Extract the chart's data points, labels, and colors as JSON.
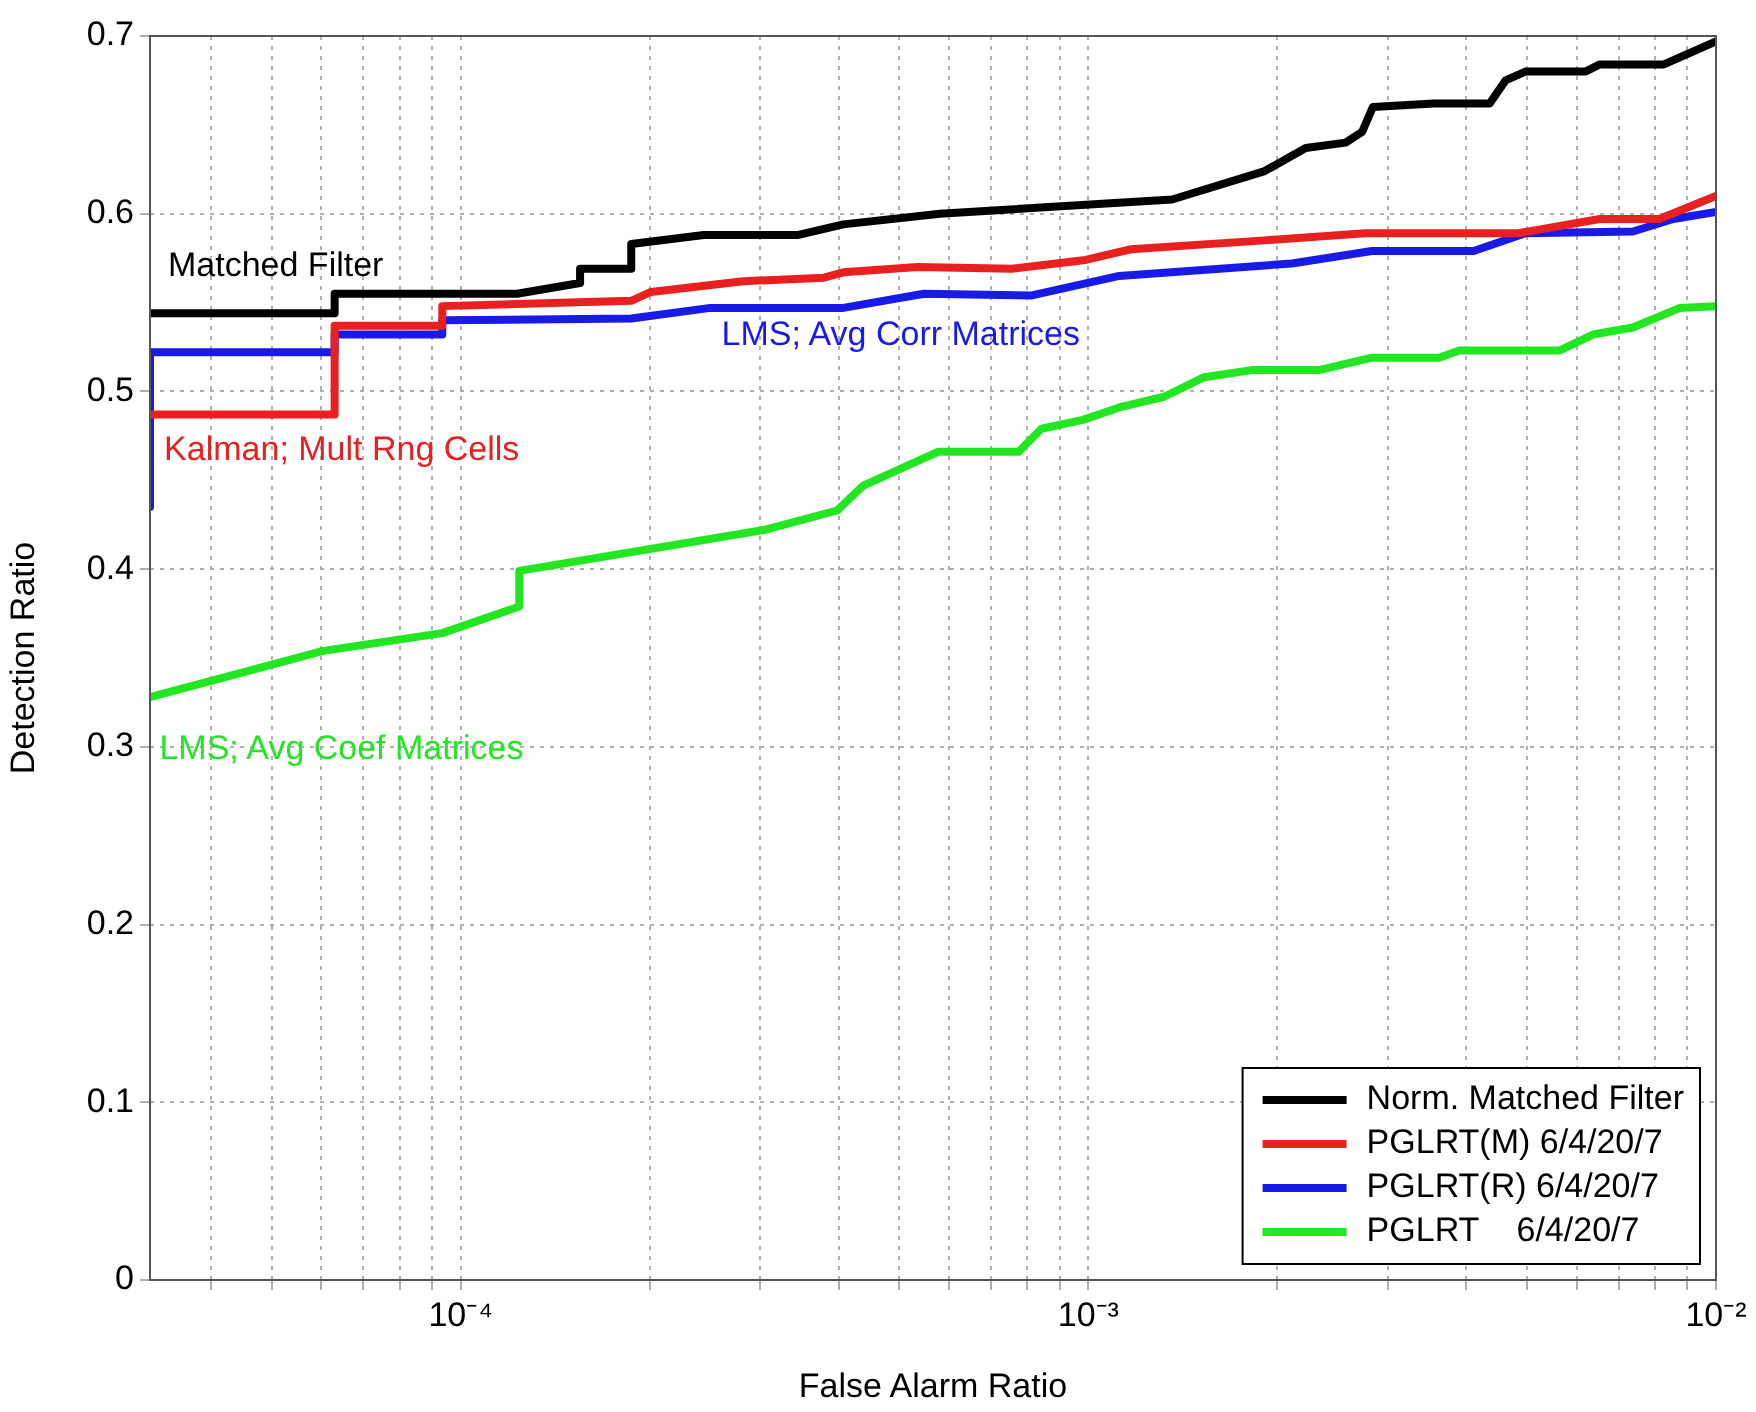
{
  "chart_data": {
    "type": "line",
    "xlabel": "False Alarm Ratio",
    "ylabel": "Detection Ratio",
    "log": "x",
    "grid": true,
    "legend": "bottom right",
    "line_style": "solid",
    "xlim": [
      3.2e-05,
      0.01
    ],
    "ylim": [
      0,
      0.7
    ],
    "xticks": [
      {
        "value": 4e-05,
        "label": null
      },
      {
        "value": 5e-05,
        "label": null
      },
      {
        "value": 6e-05,
        "label": null
      },
      {
        "value": 7e-05,
        "label": null
      },
      {
        "value": 8e-05,
        "label": null
      },
      {
        "value": 9e-05,
        "label": null
      },
      {
        "value": 0.0001,
        "label": "10⁻⁴"
      },
      {
        "value": 0.0002,
        "label": null
      },
      {
        "value": 0.0003,
        "label": null
      },
      {
        "value": 0.0004,
        "label": null
      },
      {
        "value": 0.0005,
        "label": null
      },
      {
        "value": 0.0006,
        "label": null
      },
      {
        "value": 0.0007,
        "label": null
      },
      {
        "value": 0.0008,
        "label": null
      },
      {
        "value": 0.0009,
        "label": null
      },
      {
        "value": 0.001,
        "label": "10⁻³"
      },
      {
        "value": 0.002,
        "label": null
      },
      {
        "value": 0.003,
        "label": null
      },
      {
        "value": 0.004,
        "label": null
      },
      {
        "value": 0.005,
        "label": null
      },
      {
        "value": 0.006,
        "label": null
      },
      {
        "value": 0.007,
        "label": null
      },
      {
        "value": 0.008,
        "label": null
      },
      {
        "value": 0.009,
        "label": null
      },
      {
        "value": 0.01,
        "label": "10⁻²"
      }
    ],
    "yticks": [
      0,
      0.1,
      0.2,
      0.3,
      0.4,
      0.5,
      0.6,
      0.7
    ],
    "series": [
      {
        "name": "Norm. Matched Filter",
        "color": "#000000",
        "x": [
          3.2e-05,
          6.3e-05,
          6.3e-05,
          0.000123,
          0.000155,
          0.000155,
          0.000187,
          0.000187,
          0.000244,
          0.000344,
          0.000407,
          0.00058,
          0.00136,
          0.00191,
          0.00222,
          0.00257,
          0.00273,
          0.00284,
          0.00355,
          0.00436,
          0.00462,
          0.00497,
          0.00619,
          0.00653,
          0.00826,
          0.01
        ],
        "values": [
          0.544,
          0.544,
          0.555,
          0.555,
          0.561,
          0.569,
          0.569,
          0.583,
          0.588,
          0.588,
          0.594,
          0.6,
          0.608,
          0.624,
          0.637,
          0.64,
          0.646,
          0.66,
          0.662,
          0.662,
          0.675,
          0.68,
          0.68,
          0.684,
          0.684,
          0.697
        ]
      },
      {
        "name": "PGLRT(M) 6/4/20/7",
        "color": "#e82020",
        "x": [
          3.2e-05,
          6.3e-05,
          6.3e-05,
          9.35e-05,
          9.35e-05,
          0.000187,
          0.000201,
          0.000282,
          0.000379,
          0.000407,
          0.000535,
          0.000755,
          0.00099,
          0.00117,
          0.00191,
          0.00276,
          0.00484,
          0.00653,
          0.00812,
          0.01
        ],
        "values": [
          0.487,
          0.487,
          0.537,
          0.537,
          0.548,
          0.551,
          0.556,
          0.562,
          0.564,
          0.567,
          0.57,
          0.569,
          0.574,
          0.58,
          0.585,
          0.589,
          0.589,
          0.597,
          0.597,
          0.61
        ]
      },
      {
        "name": "PGLRT(R) 6/4/20/7",
        "color": "#1a1ae6",
        "x": [
          3.2e-05,
          3.2e-05,
          6.3e-05,
          6.3e-05,
          9.35e-05,
          9.35e-05,
          0.000187,
          0.00025,
          0.000407,
          0.000547,
          0.000813,
          0.00112,
          0.00211,
          0.00283,
          0.00411,
          0.00497,
          0.00737,
          0.00855,
          0.01
        ],
        "values": [
          0.435,
          0.522,
          0.522,
          0.532,
          0.532,
          0.54,
          0.541,
          0.547,
          0.547,
          0.555,
          0.554,
          0.565,
          0.572,
          0.579,
          0.579,
          0.589,
          0.59,
          0.597,
          0.601
        ]
      },
      {
        "name": "PGLRT    6/4/20/7",
        "color": "#22e622",
        "x": [
          3.2e-05,
          6.04e-05,
          9.35e-05,
          0.000124,
          0.000124,
          0.000304,
          0.000398,
          0.000438,
          0.000576,
          0.000774,
          0.000842,
          0.00098,
          0.00112,
          0.00132,
          0.00153,
          0.00182,
          0.00233,
          0.00283,
          0.00362,
          0.0039,
          0.00563,
          0.00637,
          0.00737,
          0.00876,
          0.01
        ],
        "values": [
          0.328,
          0.354,
          0.364,
          0.379,
          0.399,
          0.422,
          0.433,
          0.447,
          0.466,
          0.466,
          0.479,
          0.484,
          0.491,
          0.497,
          0.508,
          0.512,
          0.512,
          0.519,
          0.519,
          0.523,
          0.523,
          0.532,
          0.536,
          0.547,
          0.548
        ]
      }
    ],
    "annotations": [
      "Matched Filter",
      "Kalman; Mult Rng Cells",
      "LMS; Avg Corr Matrices",
      "LMS; Avg Coef Matrices"
    ]
  }
}
